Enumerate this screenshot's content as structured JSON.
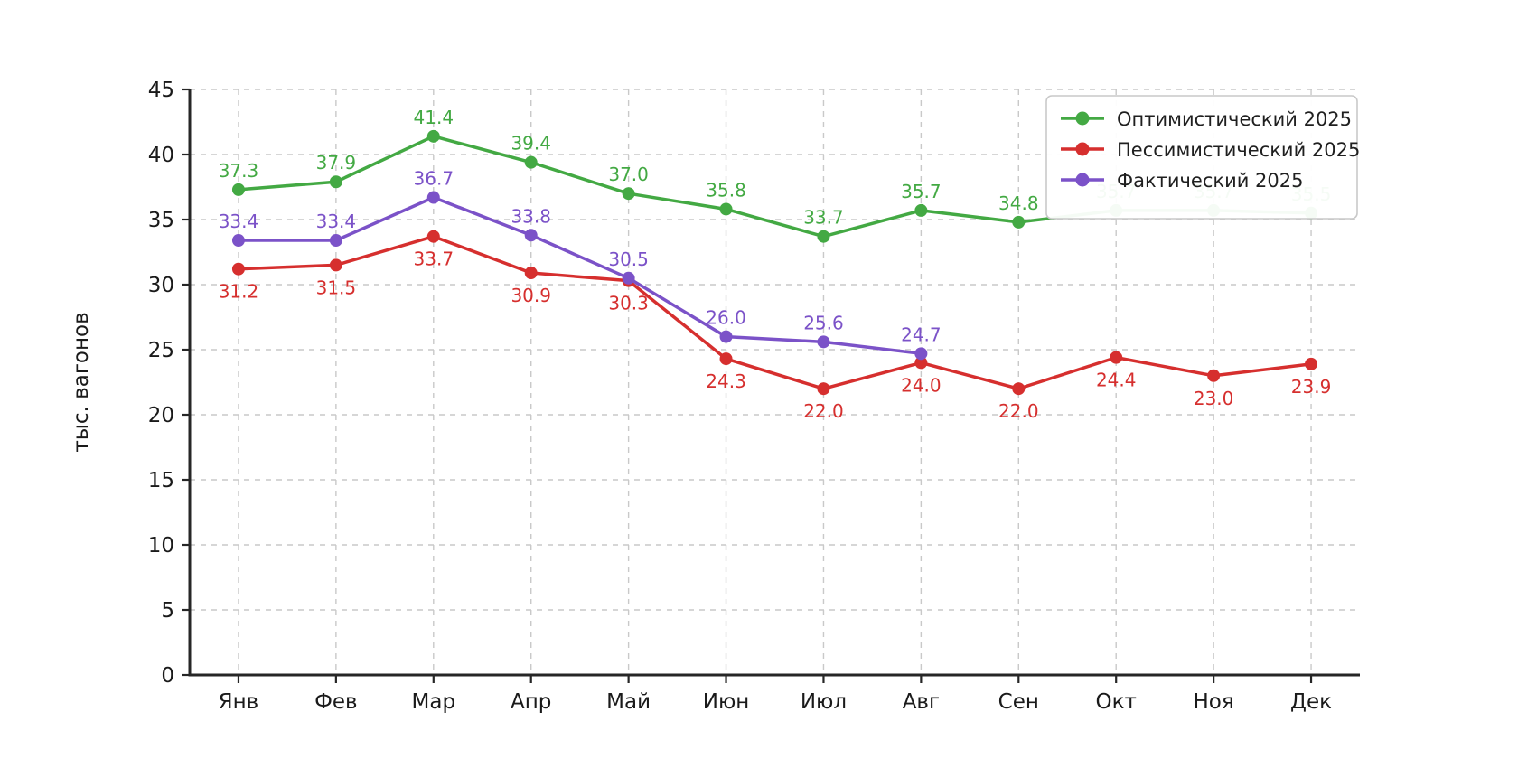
{
  "chart_data": {
    "type": "line",
    "categories": [
      "Янв",
      "Фев",
      "Мар",
      "Апр",
      "Май",
      "Июн",
      "Июл",
      "Авг",
      "Сен",
      "Окт",
      "Ноя",
      "Дек"
    ],
    "series": [
      {
        "name": "Оптимистический 2025",
        "color": "#43a943",
        "values": [
          37.3,
          37.9,
          41.4,
          39.4,
          37.0,
          35.8,
          33.7,
          35.7,
          34.8,
          35.7,
          35.7,
          35.5
        ],
        "label_position": "above"
      },
      {
        "name": "Пессимистический 2025",
        "color": "#d62f2e",
        "values": [
          31.2,
          31.5,
          33.7,
          30.9,
          30.3,
          24.3,
          22.0,
          24.0,
          22.0,
          24.4,
          23.0,
          23.9
        ],
        "label_position": "below"
      },
      {
        "name": "Фактический 2025",
        "color": "#7b52c8",
        "values": [
          33.4,
          33.4,
          36.7,
          33.8,
          30.5,
          26.0,
          25.6,
          24.7
        ],
        "label_position": "above"
      }
    ],
    "title": "",
    "xlabel": "",
    "ylabel": "тыс. вагонов",
    "ylim": [
      0,
      45
    ],
    "yticks": [
      0,
      5,
      10,
      15,
      20,
      25,
      30,
      35,
      40,
      45
    ],
    "grid": "dashed (vertical and horizontal)",
    "legend_position": "upper right",
    "value_label_decimals": 1
  },
  "style": {
    "grid_color": "#c9c9c9",
    "spine_color": "#262626",
    "tick_text_color": "#1a1a1a",
    "legend_text_color": "#1f1f1f",
    "legend_border_color": "#c9c9c9",
    "legend_background": "#ffffff",
    "background": "#ffffff"
  }
}
